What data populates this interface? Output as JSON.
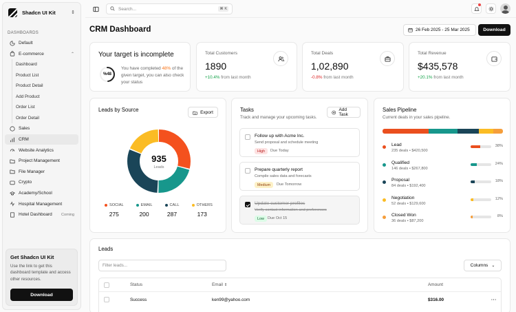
{
  "brand": {
    "name": "Shadcn UI Kit"
  },
  "sidebar": {
    "section": "DASHBOARDS",
    "items": [
      {
        "label": "Default"
      },
      {
        "label": "E-commerce"
      },
      {
        "label": "Sales"
      },
      {
        "label": "CRM"
      },
      {
        "label": "Website Analytics"
      },
      {
        "label": "Project Management"
      },
      {
        "label": "File Manager"
      },
      {
        "label": "Crypto"
      },
      {
        "label": "Academy/School"
      },
      {
        "label": "Hospital Management"
      },
      {
        "label": "Hotel Dashboard",
        "badge": "Coming"
      }
    ],
    "ecommerce_sub": [
      "Dashboard",
      "Product List",
      "Product Detail",
      "Add Product",
      "Order List",
      "Order Detail"
    ],
    "promo": {
      "title": "Get Shadcn UI Kit",
      "text": "Use the link to get this dashboard template and access other resources.",
      "button": "Download"
    }
  },
  "topbar": {
    "search_placeholder": "Search...",
    "shortcut": "⌘ K"
  },
  "header": {
    "title": "CRM Dashboard",
    "date_range": "26 Feb 2025 - 25 Mar 2025",
    "download": "Download"
  },
  "target": {
    "title": "Your target is incomplete",
    "percent_label": "%48",
    "text_before": "You have completed ",
    "highlight": "48%",
    "text_after": " of the given target, you can also check your status",
    "progress": 0.48
  },
  "stats": [
    {
      "label": "Total Customers",
      "value": "1890",
      "change": "+10.4%",
      "suffix": " from last month",
      "direction": "up",
      "icon": "users-icon"
    },
    {
      "label": "Total Deals",
      "value": "1,02,890",
      "change": "-0.8%",
      "suffix": " from last month",
      "direction": "down",
      "icon": "briefcase-icon"
    },
    {
      "label": "Total Revenue",
      "value": "$435,578",
      "change": "+20.1%",
      "suffix": " from last month",
      "direction": "up",
      "icon": "wallet-icon"
    }
  ],
  "leads_source": {
    "title": "Leads by Source",
    "export": "Export",
    "total": "935",
    "total_label": "Leads",
    "sources": [
      {
        "name": "SOCIAL",
        "value": 275,
        "color": "#f4511e"
      },
      {
        "name": "EMAIL",
        "value": 200,
        "color": "#17978c"
      },
      {
        "name": "CALL",
        "value": 287,
        "color": "#1a4558"
      },
      {
        "name": "OTHERS",
        "value": 173,
        "color": "#fbbc24"
      }
    ]
  },
  "tasks": {
    "title": "Tasks",
    "subtitle": "Track and manage your upcoming tasks.",
    "add": "Add Task",
    "items": [
      {
        "title": "Follow up with Acme Inc.",
        "desc": "Send proposal and schedule meeting",
        "priority": "High",
        "due": "Due Today",
        "done": false
      },
      {
        "title": "Prepare quarterly report",
        "desc": "Compile sales data and forecasts",
        "priority": "Medium",
        "due": "Due Tomorrow",
        "done": false
      },
      {
        "title": "Update customer profiles",
        "desc": "Verify contact information and preferences",
        "priority": "Low",
        "due": "Due Oct 15",
        "done": true
      }
    ]
  },
  "pipeline": {
    "title": "Sales Pipeline",
    "subtitle": "Current deals in your sales pipeline.",
    "stages": [
      {
        "name": "Lead",
        "detail": "235 deals • $420,500",
        "percent": 38,
        "pct_label": "38%",
        "color": "#ea4f1e"
      },
      {
        "name": "Qualified",
        "detail": "146 deals • $267,800",
        "percent": 24,
        "pct_label": "24%",
        "color": "#17978c"
      },
      {
        "name": "Proposal",
        "detail": "84 deals • $192,400",
        "percent": 18,
        "pct_label": "18%",
        "color": "#1a4558"
      },
      {
        "name": "Negotiation",
        "detail": "52 deals • $129,600",
        "percent": 12,
        "pct_label": "12%",
        "color": "#fbbc24"
      },
      {
        "name": "Closed Won",
        "detail": "36 deals • $87,200",
        "percent": 8,
        "pct_label": "8%",
        "color": "#f59e3b"
      }
    ]
  },
  "leads_table": {
    "title": "Leads",
    "filter_placeholder": "Filter leads...",
    "columns_btn": "Columns",
    "headers": {
      "status": "Status",
      "email": "Email",
      "amount": "Amount"
    },
    "rows": [
      {
        "status": "Success",
        "email": "ken99@yahoo.com",
        "amount": "$316.00"
      }
    ]
  }
}
